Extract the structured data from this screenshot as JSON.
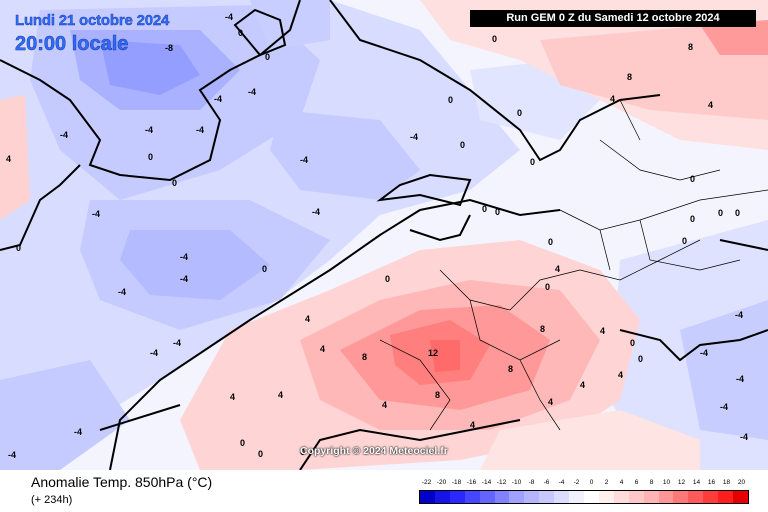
{
  "header": {
    "date_line": "Lundi 21 octobre 2024",
    "time_line": "20:00 locale",
    "run_label": "Run GEM 0 Z du Samedi 12 octobre 2024"
  },
  "copyright": "Copyright © 2024 Meteociel.fr",
  "footer": {
    "title": "Anomalie Temp. 850hPa (°C)",
    "lead_time": "(+ 234h)"
  },
  "legend": {
    "labels": [
      "-22",
      "-20",
      "-18",
      "-16",
      "-14",
      "-12",
      "-10",
      "-8",
      "-6",
      "-4",
      "-2",
      "0",
      "2",
      "4",
      "6",
      "8",
      "10",
      "12",
      "14",
      "16",
      "18",
      "20"
    ],
    "colors": [
      "#0000c8",
      "#1414e6",
      "#2828ff",
      "#4646ff",
      "#6464ff",
      "#8282ff",
      "#a0a0ff",
      "#b4b4ff",
      "#c8c8ff",
      "#dcdcff",
      "#f0f0ff",
      "#ffffff",
      "#fff0f0",
      "#ffdcdc",
      "#ffc8c8",
      "#ffb4b4",
      "#ff9696",
      "#ff7878",
      "#ff5a5a",
      "#ff3c3c",
      "#ff1e1e",
      "#e60000"
    ]
  },
  "map": {
    "contour_labels": [
      "0",
      "-8",
      "0",
      "-4",
      "-4",
      "-4",
      "-4",
      "0",
      "0",
      "-4",
      "0",
      "-4",
      "-4",
      "0",
      "4",
      "-4",
      "-4",
      "0",
      "-4",
      "-4",
      "-4",
      "-4",
      "0",
      "-4",
      "-4",
      "0",
      "0",
      "0",
      "8",
      "8",
      "4",
      "4",
      "4",
      "0",
      "0",
      "0",
      "4",
      "4",
      "8",
      "12",
      "8",
      "8",
      "8",
      "4",
      "4",
      "4",
      "4",
      "0",
      "0",
      "0",
      "0",
      "-4",
      "-4",
      "-4",
      "-4",
      "-4",
      "0",
      "0",
      "0",
      "4",
      "4",
      "4",
      "4",
      "0",
      "0",
      "0",
      "0",
      "0",
      "-4",
      "-4"
    ]
  }
}
